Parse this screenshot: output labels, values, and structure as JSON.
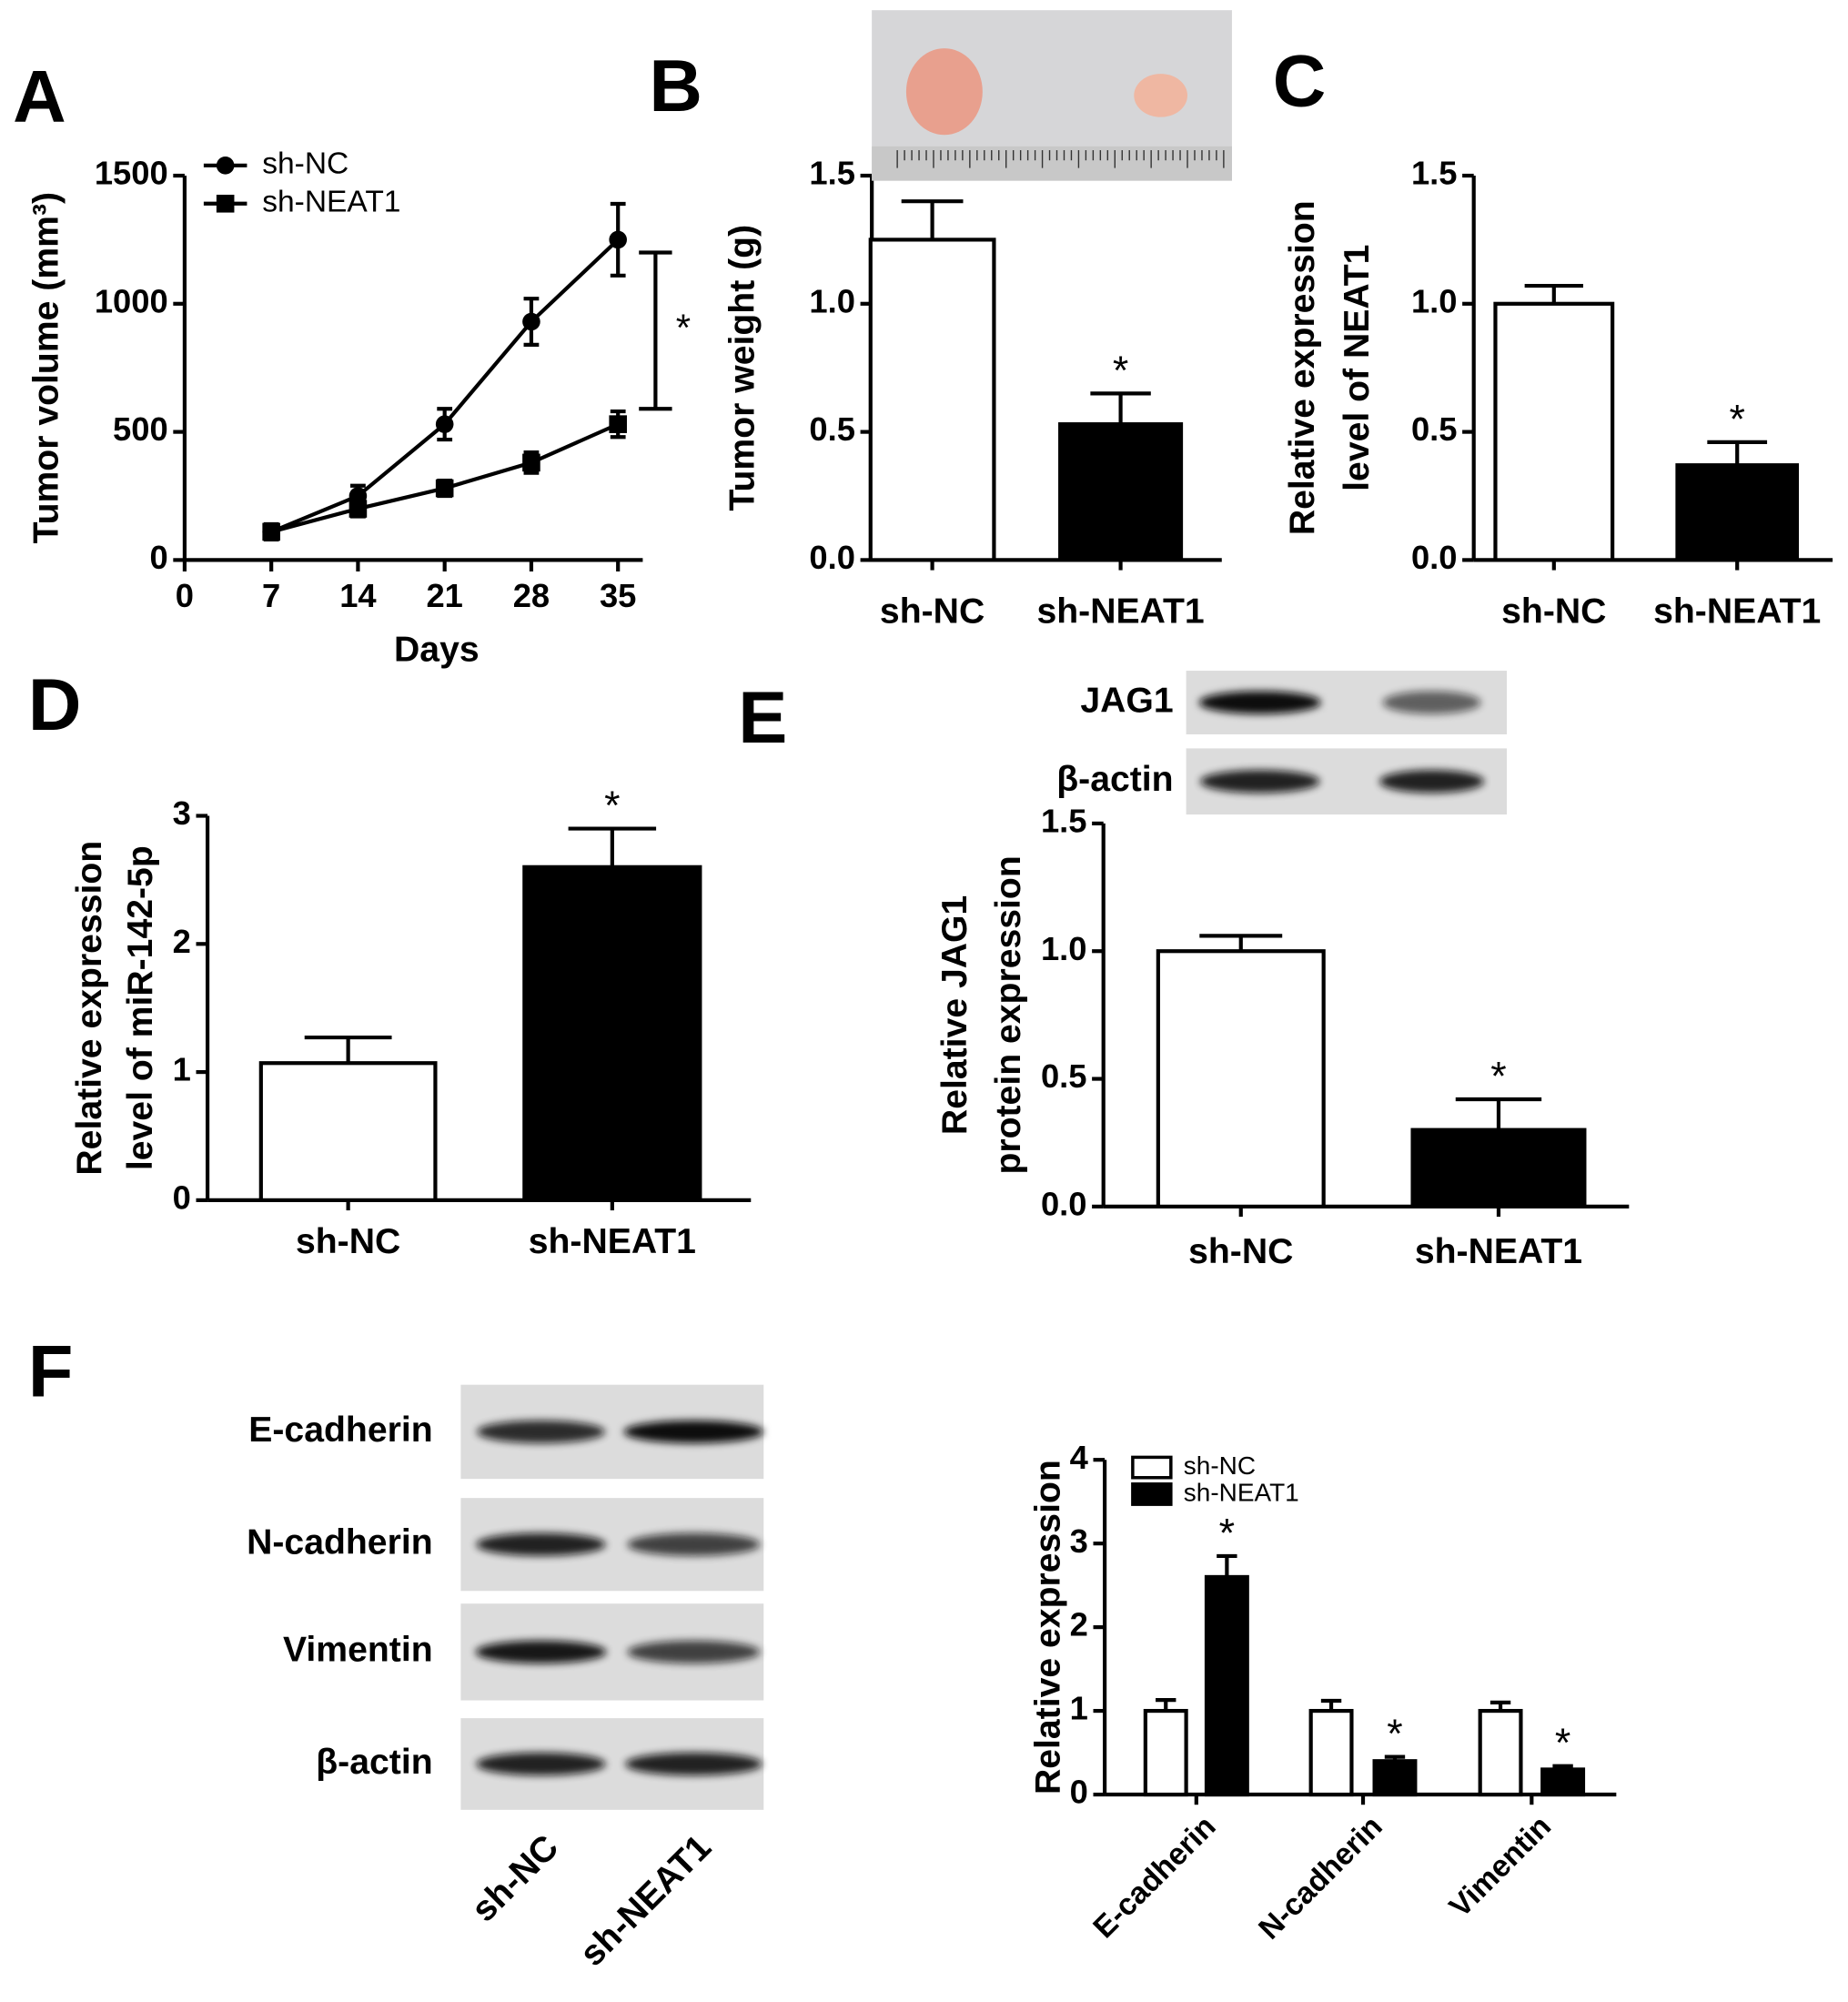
{
  "chart_data": [
    {
      "panel": "A",
      "type": "line",
      "x_label": "Days",
      "y_label": [
        "Tumor volume (mm³)"
      ],
      "x": [
        7,
        14,
        21,
        28,
        35
      ],
      "xlim": [
        0,
        37
      ],
      "xticks": [
        0,
        7,
        14,
        21,
        28,
        35
      ],
      "ylim": [
        0,
        1500
      ],
      "yticks": [
        0,
        500,
        1000,
        1500
      ],
      "legend": "upper left",
      "series": [
        {
          "name": "sh-NC",
          "color": "#000000",
          "marker": "circle",
          "values": [
            110,
            250,
            530,
            930,
            1250
          ],
          "errors": [
            30,
            40,
            60,
            90,
            140
          ]
        },
        {
          "name": "sh-NEAT1",
          "color": "#000000",
          "marker": "square",
          "values": [
            110,
            200,
            280,
            380,
            530
          ],
          "errors": [
            20,
            30,
            30,
            40,
            50
          ]
        }
      ],
      "bracket": {
        "values": [
          590,
          1200
        ],
        "label": "*"
      }
    },
    {
      "panel": "B",
      "type": "bar",
      "y_label": [
        "Tumor weight (g)"
      ],
      "categories": [
        "sh-NC",
        "sh-NEAT1"
      ],
      "values": [
        1.25,
        0.53
      ],
      "errors": [
        0.15,
        0.12
      ],
      "colors": [
        "#ffffff",
        "#000000"
      ],
      "value_annotations": [
        null,
        "*"
      ],
      "ylim": [
        0,
        1.5
      ],
      "yticks": [
        {
          "value": 0,
          "label": "0.0"
        },
        {
          "value": 0.5,
          "label": "0.5"
        },
        {
          "value": 1,
          "label": "1.0"
        },
        {
          "value": 1.5,
          "label": "1.5"
        }
      ]
    },
    {
      "panel": "C",
      "type": "bar",
      "y_label": [
        "Relative  expression",
        "level of NEAT1"
      ],
      "categories": [
        "sh-NC",
        "sh-NEAT1"
      ],
      "values": [
        1.0,
        0.37
      ],
      "errors": [
        0.07,
        0.09
      ],
      "colors": [
        "#ffffff",
        "#000000"
      ],
      "value_annotations": [
        null,
        "*"
      ],
      "ylim": [
        0,
        1.5
      ],
      "yticks": [
        {
          "value": 0,
          "label": "0.0"
        },
        {
          "value": 0.5,
          "label": "0.5"
        },
        {
          "value": 1,
          "label": "1.0"
        },
        {
          "value": 1.5,
          "label": "1.5"
        }
      ]
    },
    {
      "panel": "D",
      "type": "bar",
      "y_label": [
        "Relative expression",
        "level of miR-142-5p"
      ],
      "categories": [
        "sh-NC",
        "sh-NEAT1"
      ],
      "values": [
        1.07,
        2.6
      ],
      "errors": [
        0.2,
        0.3
      ],
      "colors": [
        "#ffffff",
        "#000000"
      ],
      "value_annotations": [
        null,
        "*"
      ],
      "ylim": [
        0,
        3
      ],
      "yticks": [
        0,
        1,
        2,
        3
      ]
    },
    {
      "panel": "E",
      "type": "bar",
      "y_label": [
        "Relative JAG1",
        "protein expression"
      ],
      "categories": [
        "sh-NC",
        "sh-NEAT1"
      ],
      "values": [
        1.0,
        0.3
      ],
      "errors": [
        0.06,
        0.12
      ],
      "colors": [
        "#ffffff",
        "#000000"
      ],
      "value_annotations": [
        null,
        "*"
      ],
      "ylim": [
        0,
        1.5
      ],
      "yticks": [
        {
          "value": 0,
          "label": "0.0"
        },
        {
          "value": 0.5,
          "label": "0.5"
        },
        {
          "value": 1,
          "label": "1.0"
        },
        {
          "value": 1.5,
          "label": "1.5"
        }
      ],
      "blot": {
        "labels": [
          "JAG1",
          "β-actin"
        ]
      }
    },
    {
      "panel": "F",
      "type": "bar",
      "y_label": [
        "Relative expression"
      ],
      "categories": [
        "E-cadherin",
        "N-cadherin",
        "Vimentin"
      ],
      "series": [
        {
          "name": "sh-NC",
          "color": "#ffffff",
          "values": [
            1.0,
            1.0,
            1.0
          ],
          "errors": [
            0.13,
            0.12,
            0.1
          ],
          "value_annotations": [
            null,
            null,
            null
          ]
        },
        {
          "name": "sh-NEAT1",
          "color": "#000000",
          "values": [
            2.6,
            0.4,
            0.3
          ],
          "errors": [
            0.25,
            0.05,
            0.04
          ],
          "value_annotations": [
            "*",
            "*",
            "*"
          ]
        }
      ],
      "ylim": [
        0,
        4
      ],
      "yticks": [
        0,
        1,
        2,
        3,
        4
      ],
      "legend": "upper left",
      "blot": {
        "labels": [
          "E-cadherin",
          "N-cadherin",
          "Vimentin",
          "β-actin"
        ],
        "lanes": [
          "sh-NC",
          "sh-NEAT1"
        ]
      }
    }
  ]
}
